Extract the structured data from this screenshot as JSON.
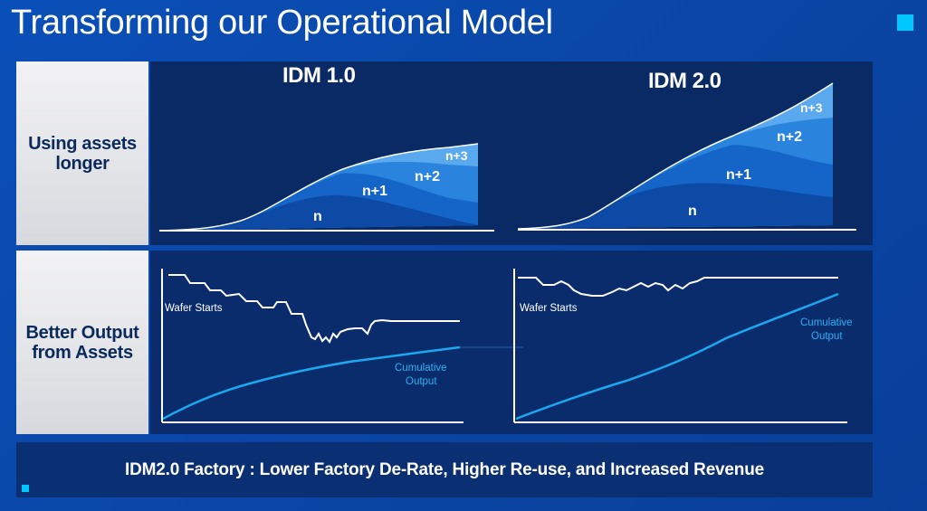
{
  "slide": {
    "title": "Transforming our Operational Model",
    "footer": "IDM2.0 Factory :  Lower Factory De-Rate, Higher Re-use, and Increased Revenue"
  },
  "rows": {
    "assets_longer": "Using assets longer",
    "better_output": "Better Output from Assets"
  },
  "charts": {
    "idm1_title": "IDM 1.0",
    "idm2_title": "IDM 2.0",
    "layers": [
      "n",
      "n+1",
      "n+2",
      "n+3"
    ],
    "wafer_starts": "Wafer Starts",
    "cumulative_output": "Cumulative Output",
    "cumulative_line1": "Cumulative",
    "cumulative_line2": "Output"
  },
  "colors": {
    "accent": "#00c7fd",
    "layer_n": "#0d4aa6",
    "layer_n1": "#1565c8",
    "layer_n2": "#2a84de",
    "layer_n3": "#5aa9ef",
    "cumulative": "#1aa8ef"
  }
}
